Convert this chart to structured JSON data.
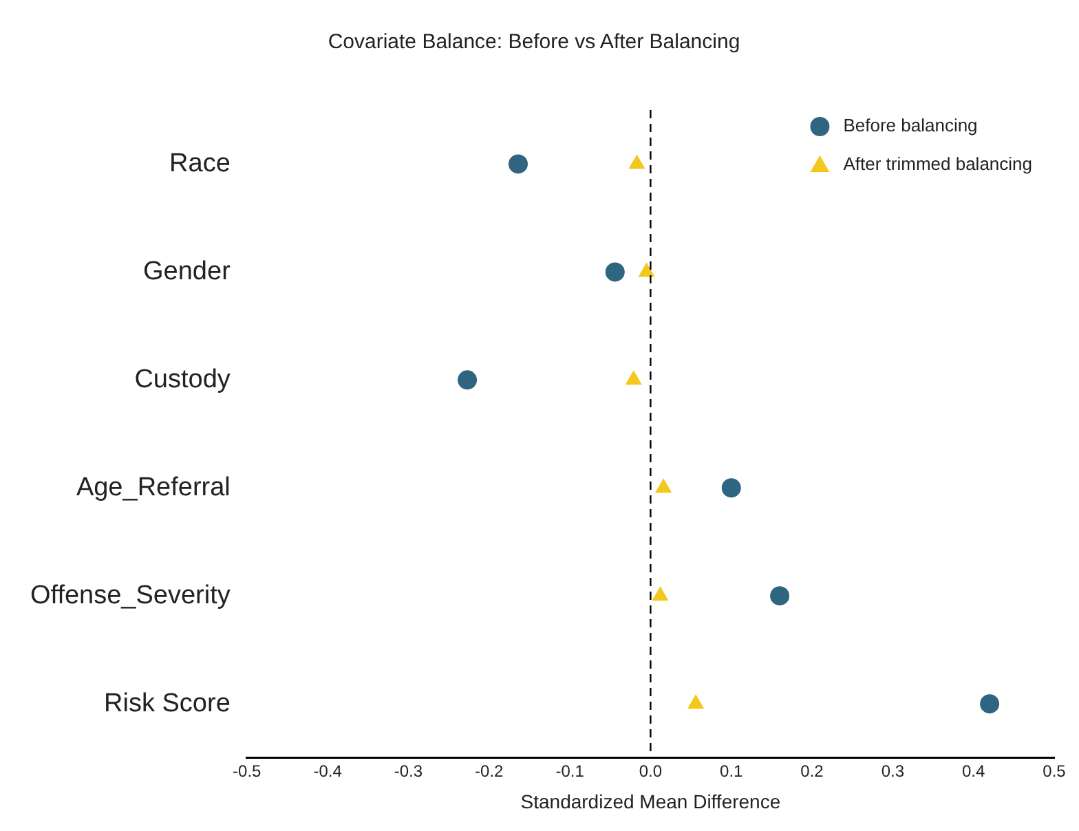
{
  "chart_data": {
    "type": "scatter",
    "title": "Covariate Balance: Before vs After Balancing",
    "xlabel": "Standardized Mean Difference",
    "categories": [
      "Race",
      "Gender",
      "Custody",
      "Age_Referral",
      "Offense_Severity",
      "Risk Score"
    ],
    "series": [
      {
        "name": "Before balancing",
        "color": "#2f6580",
        "marker": "circle",
        "values": [
          -0.164,
          -0.044,
          -0.227,
          0.1,
          0.16,
          0.42
        ]
      },
      {
        "name": "After trimmed balancing",
        "color": "#f2c81e",
        "marker": "triangle",
        "values": [
          -0.017,
          -0.005,
          -0.021,
          0.016,
          0.012,
          0.056
        ]
      }
    ],
    "orientation": "horizontal",
    "xlim": [
      -0.5,
      0.5
    ],
    "xticks": [
      -0.5,
      -0.4,
      -0.3,
      -0.2,
      -0.1,
      {
        "value": 0,
        "label": "0.0"
      },
      0.1,
      0.2,
      0.3,
      0.4,
      0.5
    ],
    "ref_lines": [
      {
        "axis": "x",
        "value": 0,
        "color": "#000000",
        "line_style": "dashed"
      }
    ],
    "grid": false,
    "legend": "top right"
  }
}
